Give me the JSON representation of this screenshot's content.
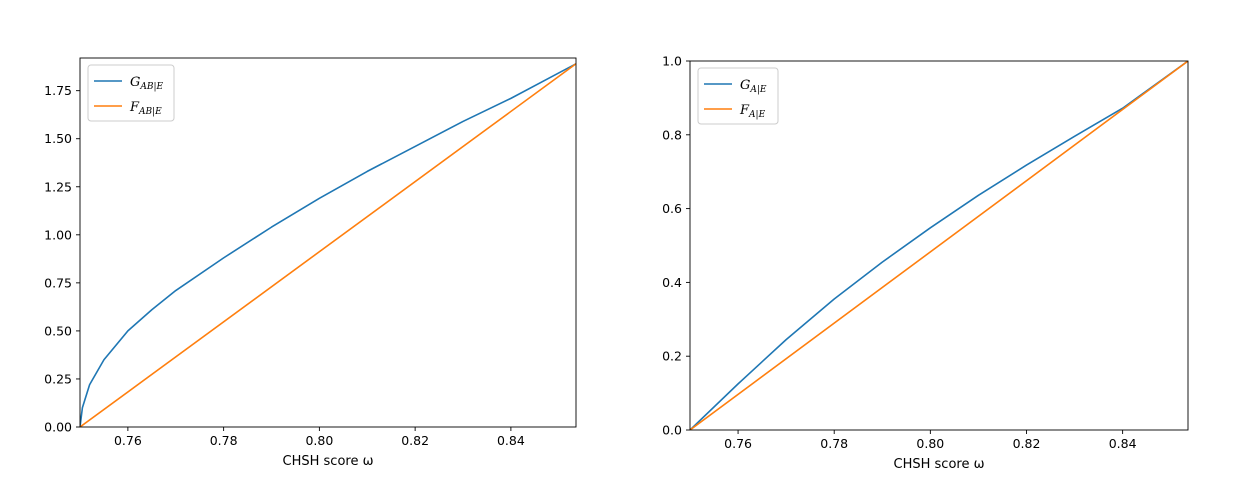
{
  "chart_data": [
    {
      "type": "line",
      "xlabel": "CHSH score ω",
      "xlim": [
        0.75,
        0.8536
      ],
      "ylim": [
        0.0,
        1.92
      ],
      "xticks": [
        0.76,
        0.78,
        0.8,
        0.82,
        0.84
      ],
      "yticks": [
        0.0,
        0.25,
        0.5,
        0.75,
        1.0,
        1.25,
        1.5,
        1.75
      ],
      "xtick_labels": [
        "0.76",
        "0.78",
        "0.80",
        "0.82",
        "0.84"
      ],
      "ytick_labels": [
        "0.00",
        "0.25",
        "0.50",
        "0.75",
        "1.00",
        "1.25",
        "1.50",
        "1.75"
      ],
      "legend_position": "top-left",
      "series": [
        {
          "name": "G_{AB|E}",
          "legend_main": "G",
          "legend_sub": "AB|E",
          "color": "#1f77b4",
          "x": [
            0.75,
            0.7505,
            0.752,
            0.755,
            0.76,
            0.765,
            0.77,
            0.78,
            0.79,
            0.8,
            0.81,
            0.82,
            0.83,
            0.84,
            0.8536
          ],
          "y": [
            0.0,
            0.1,
            0.22,
            0.35,
            0.5,
            0.61,
            0.71,
            0.88,
            1.04,
            1.19,
            1.33,
            1.46,
            1.59,
            1.71,
            1.89
          ]
        },
        {
          "name": "F_{AB|E}",
          "legend_main": "F",
          "legend_sub": "AB|E",
          "color": "#ff7f0e",
          "x": [
            0.75,
            0.8536
          ],
          "y": [
            0.0,
            1.89
          ]
        }
      ]
    },
    {
      "type": "line",
      "xlabel": "CHSH score ω",
      "xlim": [
        0.75,
        0.8536
      ],
      "ylim": [
        0.0,
        1.0
      ],
      "xticks": [
        0.76,
        0.78,
        0.8,
        0.82,
        0.84
      ],
      "yticks": [
        0.0,
        0.2,
        0.4,
        0.6,
        0.8,
        1.0
      ],
      "xtick_labels": [
        "0.76",
        "0.78",
        "0.80",
        "0.82",
        "0.84"
      ],
      "ytick_labels": [
        "0.0",
        "0.2",
        "0.4",
        "0.6",
        "0.8",
        "1.0"
      ],
      "legend_position": "top-left",
      "series": [
        {
          "name": "G_{A|E}",
          "legend_main": "G",
          "legend_sub": "A|E",
          "color": "#1f77b4",
          "x": [
            0.75,
            0.76,
            0.77,
            0.78,
            0.79,
            0.8,
            0.81,
            0.82,
            0.83,
            0.84,
            0.8536
          ],
          "y": [
            0.0,
            0.125,
            0.245,
            0.355,
            0.455,
            0.548,
            0.636,
            0.718,
            0.796,
            0.872,
            1.0
          ]
        },
        {
          "name": "F_{A|E}",
          "legend_main": "F",
          "legend_sub": "A|E",
          "color": "#ff7f0e",
          "x": [
            0.75,
            0.8536
          ],
          "y": [
            0.0,
            1.0
          ]
        }
      ]
    }
  ]
}
